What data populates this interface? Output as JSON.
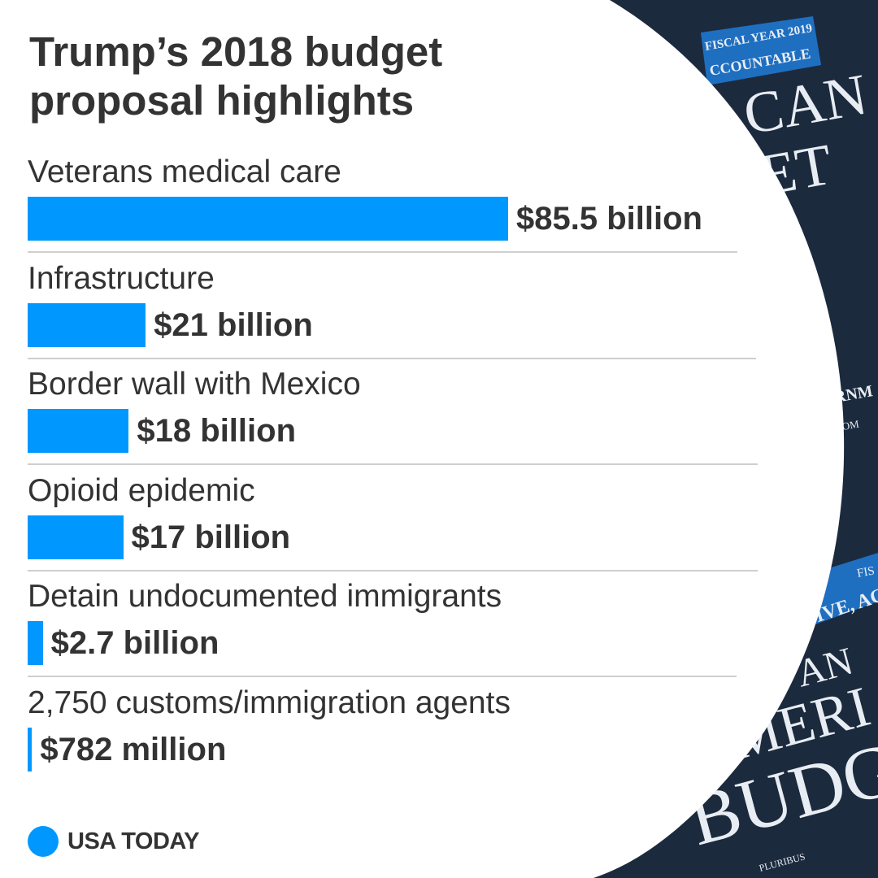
{
  "colors": {
    "bar": "#0098FE",
    "text": "#333333",
    "cover_bg": "#1c2a3e",
    "cover_banner": "#1f6fc1"
  },
  "title_lines": [
    "Trump’s 2018 budget",
    "proposal highlights"
  ],
  "chart_data": {
    "type": "bar",
    "orientation": "horizontal",
    "title": "Trump’s 2018 budget proposal highlights",
    "unit": "billion USD",
    "categories": [
      "Veterans medical care",
      "Infrastructure",
      "Border wall with Mexico",
      "Opioid epidemic",
      "Detain undocumented immigrants",
      "2,750 customs/immigration agents"
    ],
    "values": [
      85.5,
      21,
      18,
      17,
      2.7,
      0.782
    ],
    "value_labels": [
      "$85.5 billion",
      "$21 billion",
      "$18 billion",
      "$17 billion",
      "$2.7 billion",
      "$782 million"
    ],
    "xlim": [
      0,
      85.5
    ]
  },
  "background_photo": {
    "description_icon": "budget-book-cover-photo",
    "cover_texts": {
      "fiscal_year_top": "FISCAL YEAR 2019",
      "banner_top": "CCOUNTABLE",
      "big_top_1": "CAN",
      "big_top_2": "ET",
      "govern": "VERNM",
      "budget_small": "GET | OM",
      "fisc": "FIS",
      "banner_bottom": "FECTIVE, AC",
      "an": "AN",
      "ameri": "MERI",
      "budg": "BUDG",
      "pluribus": "PLURIBUS"
    }
  },
  "brand": {
    "name": "USA TODAY"
  }
}
